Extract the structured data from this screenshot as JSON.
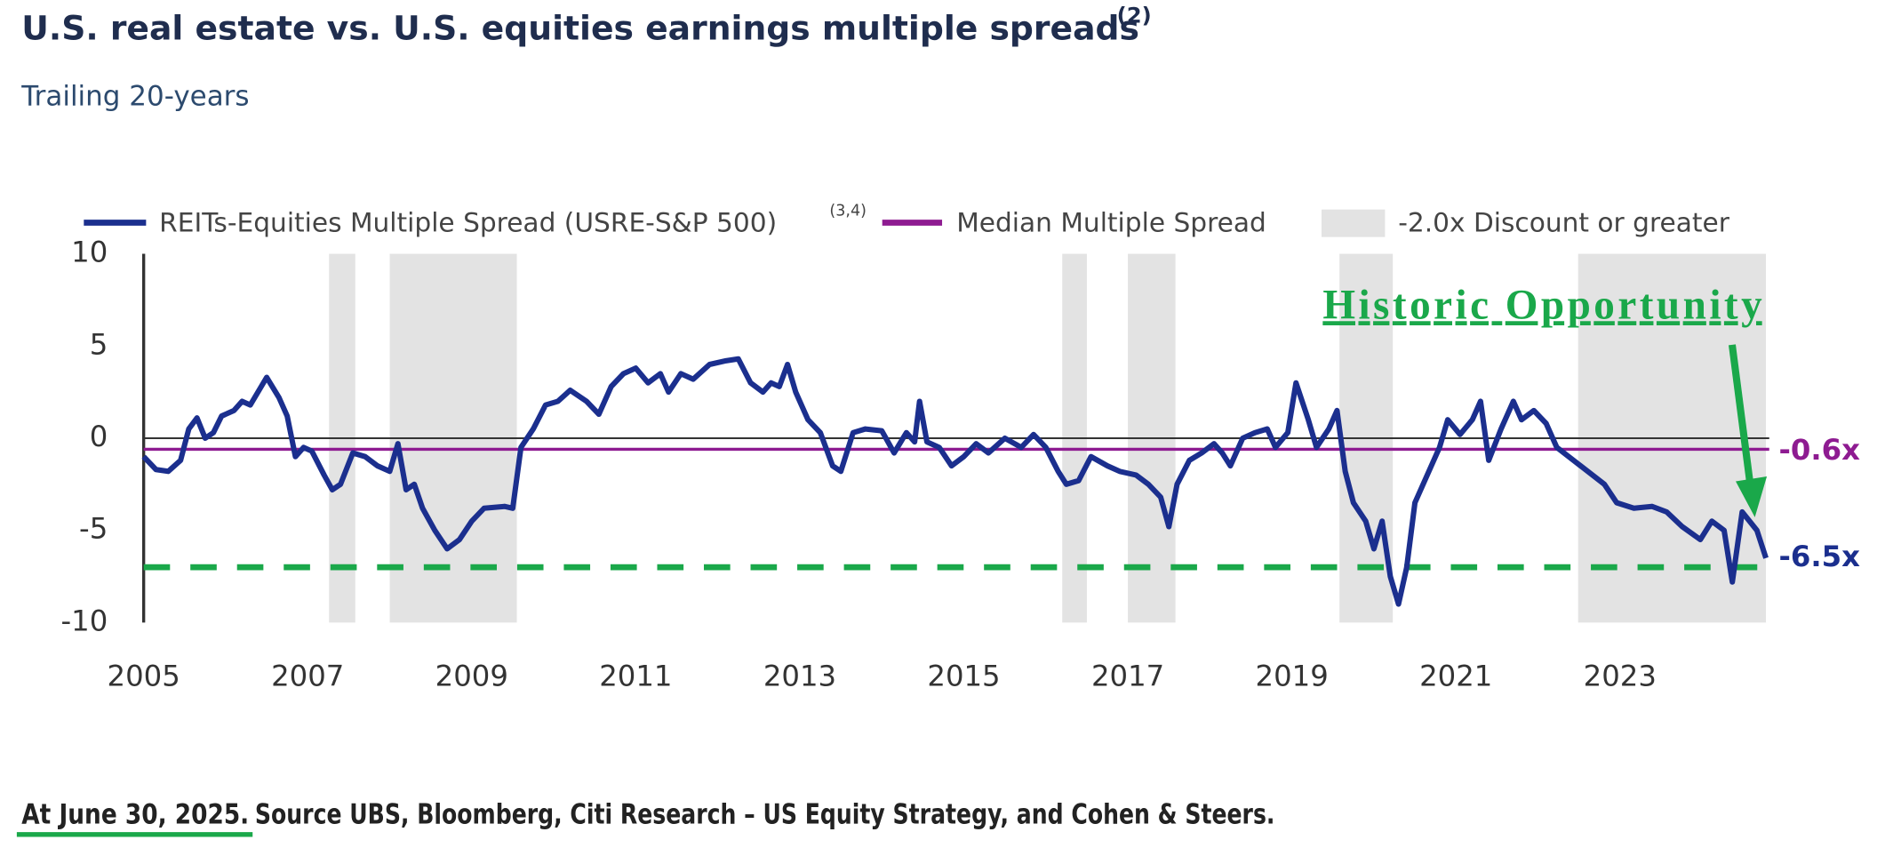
{
  "chart_data": {
    "type": "line",
    "title": "U.S. real estate vs. U.S. equities earnings multiple spreads",
    "title_note": "(2)",
    "subtitle": "Trailing 20-years",
    "x": [
      2005.0,
      2005.15,
      2005.3,
      2005.45,
      2005.55,
      2005.65,
      2005.75,
      2005.85,
      2005.95,
      2006.1,
      2006.2,
      2006.3,
      2006.5,
      2006.65,
      2006.75,
      2006.85,
      2006.95,
      2007.05,
      2007.2,
      2007.3,
      2007.4,
      2007.55,
      2007.7,
      2007.85,
      2008.0,
      2008.1,
      2008.2,
      2008.3,
      2008.4,
      2008.55,
      2008.7,
      2008.85,
      2009.0,
      2009.15,
      2009.4,
      2009.5,
      2009.6,
      2009.75,
      2009.9,
      2010.05,
      2010.2,
      2010.4,
      2010.55,
      2010.7,
      2010.85,
      2011.0,
      2011.15,
      2011.3,
      2011.4,
      2011.55,
      2011.7,
      2011.9,
      2012.1,
      2012.25,
      2012.4,
      2012.55,
      2012.65,
      2012.75,
      2012.85,
      2012.95,
      2013.1,
      2013.25,
      2013.4,
      2013.5,
      2013.65,
      2013.8,
      2014.0,
      2014.15,
      2014.3,
      2014.4,
      2014.46,
      2014.55,
      2014.7,
      2014.85,
      2015.0,
      2015.15,
      2015.3,
      2015.5,
      2015.7,
      2015.85,
      2016.0,
      2016.15,
      2016.25,
      2016.4,
      2016.55,
      2016.75,
      2016.9,
      2017.1,
      2017.25,
      2017.4,
      2017.5,
      2017.6,
      2017.75,
      2017.9,
      2018.05,
      2018.15,
      2018.25,
      2018.4,
      2018.55,
      2018.7,
      2018.8,
      2018.95,
      2019.05,
      2019.2,
      2019.3,
      2019.45,
      2019.55,
      2019.65,
      2019.75,
      2019.9,
      2020.0,
      2020.1,
      2020.2,
      2020.3,
      2020.4,
      2020.5,
      2020.7,
      2020.8,
      2020.9,
      2021.05,
      2021.2,
      2021.3,
      2021.4,
      2021.55,
      2021.7,
      2021.8,
      2021.95,
      2022.1,
      2022.23,
      2022.52,
      2022.81,
      2022.96,
      2023.17,
      2023.39,
      2023.57,
      2023.76,
      2023.98,
      2024.12,
      2024.27,
      2024.37,
      2024.49,
      2024.58,
      2024.67,
      2024.78
    ],
    "series": [
      {
        "name": "REITs-Equities Multiple Spread (USRE-S&P 500)",
        "note": "(3,4)",
        "color": "#1b2f8e",
        "values": [
          -1.0,
          -1.7,
          -1.8,
          -1.2,
          0.5,
          1.1,
          0.0,
          0.3,
          1.2,
          1.5,
          2.0,
          1.8,
          3.3,
          2.2,
          1.2,
          -1.0,
          -0.5,
          -0.7,
          -2.0,
          -2.8,
          -2.5,
          -0.8,
          -1.0,
          -1.5,
          -1.8,
          -0.3,
          -2.8,
          -2.5,
          -3.8,
          -5.0,
          -6.0,
          -5.5,
          -4.5,
          -3.8,
          -3.7,
          -3.8,
          -0.5,
          0.5,
          1.8,
          2.0,
          2.6,
          2.0,
          1.3,
          2.8,
          3.5,
          3.8,
          3.0,
          3.5,
          2.5,
          3.5,
          3.2,
          4.0,
          4.2,
          4.3,
          3.0,
          2.5,
          3.0,
          2.8,
          4.0,
          2.5,
          1.0,
          0.3,
          -1.5,
          -1.8,
          0.3,
          0.5,
          0.4,
          -0.8,
          0.3,
          -0.2,
          2.0,
          -0.2,
          -0.5,
          -1.5,
          -1.0,
          -0.3,
          -0.8,
          0.0,
          -0.5,
          0.2,
          -0.5,
          -1.8,
          -2.5,
          -2.3,
          -1.0,
          -1.5,
          -1.8,
          -2.0,
          -2.5,
          -3.2,
          -4.8,
          -2.5,
          -1.2,
          -0.8,
          -0.3,
          -0.8,
          -1.5,
          0.0,
          0.3,
          0.5,
          -0.5,
          0.3,
          3.0,
          1.0,
          -0.5,
          0.5,
          1.5,
          -1.8,
          -3.5,
          -4.5,
          -6.0,
          -4.5,
          -7.5,
          -9.0,
          -7.0,
          -3.5,
          -1.5,
          -0.5,
          1.0,
          0.2,
          1.0,
          2.0,
          -1.2,
          0.5,
          2.0,
          1.0,
          1.5,
          0.8,
          -0.5,
          -1.5,
          -2.5,
          -3.5,
          -3.8,
          -3.7,
          -4.0,
          -4.8,
          -5.5,
          -4.5,
          -5.0,
          -7.8,
          -4.0,
          -4.5,
          -5.0,
          -6.5
        ],
        "last_value_label": "-6.5x"
      }
    ],
    "median": {
      "name": "Median Multiple Spread",
      "value": -0.6,
      "value_label": "-0.6x",
      "color": "#8e1b91"
    },
    "shaded": {
      "name": "-2.0x Discount or greater",
      "color": "#e3e3e3",
      "ranges": [
        [
          2007.26,
          2007.58
        ],
        [
          2008.0,
          2009.55
        ],
        [
          2016.2,
          2016.5
        ],
        [
          2017.0,
          2017.58
        ],
        [
          2019.58,
          2020.23
        ],
        [
          2022.49,
          2024.78
        ]
      ]
    },
    "threshold": -7,
    "threshold_color": "#1aa84a",
    "annotation": "Historic Opportunity",
    "xlim": [
      2005,
      2024.82
    ],
    "xticks": [
      2005,
      2007,
      2009,
      2011,
      2013,
      2015,
      2017,
      2019,
      2021,
      2023
    ],
    "ylim": [
      -10,
      10
    ],
    "yticks": [
      10,
      5,
      0,
      -5,
      -10
    ],
    "grid": false,
    "footnote": {
      "date": "At June 30, 2025.",
      "text": "Source UBS, Bloomberg, Citi Research – US Equity Strategy, and Cohen & Steers."
    }
  }
}
